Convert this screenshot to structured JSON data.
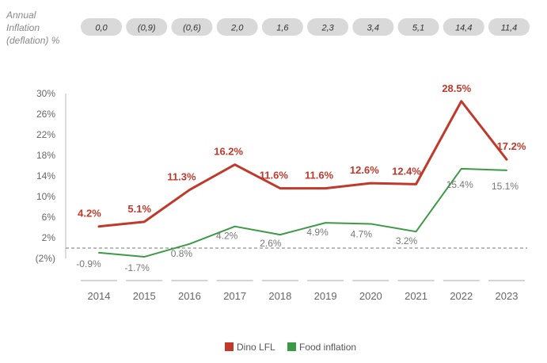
{
  "inflation_header": {
    "title_lines": [
      "Annual",
      "Inflation",
      "(deflation) %"
    ],
    "values": [
      "0,0",
      "(0,9)",
      "(0,6)",
      "2,0",
      "1,6",
      "2,3",
      "3,4",
      "5,1",
      "14,4",
      "11,4"
    ]
  },
  "colors": {
    "dino": "#c0392b",
    "food": "#3c9a46",
    "axis_text": "#666666",
    "pill_bg": "#d9d9d9",
    "dashed": "#777777"
  },
  "chart_data": {
    "type": "line",
    "categories": [
      "2014",
      "2015",
      "2016",
      "2017",
      "2018",
      "2019",
      "2020",
      "2021",
      "2022",
      "2023"
    ],
    "ylim": [
      -2,
      30
    ],
    "y_ticks": [
      30,
      26,
      22,
      18,
      14,
      10,
      6,
      2,
      -2
    ],
    "y_tick_labels": [
      "30%",
      "26%",
      "22%",
      "18%",
      "14%",
      "10%",
      "6%",
      "2%",
      "(2%)"
    ],
    "zero_line": true,
    "series": [
      {
        "name": "Dino LFL",
        "values": [
          4.2,
          5.1,
          11.3,
          16.2,
          11.6,
          11.6,
          12.6,
          12.4,
          28.5,
          17.2
        ],
        "labels": [
          "4.2%",
          "5.1%",
          "11.3%",
          "16.2%",
          "11.6%",
          "11.6%",
          "12.6%",
          "12.4%",
          "28.5%",
          "17.2%"
        ]
      },
      {
        "name": "Food inflation",
        "values": [
          -0.9,
          -1.7,
          0.8,
          4.2,
          2.6,
          4.9,
          4.7,
          3.2,
          15.4,
          15.1
        ],
        "labels": [
          "-0.9%",
          "-1.7%",
          "0.8%",
          "4.2%",
          "2.6%",
          "4.9%",
          "4.7%",
          "3.2%",
          "15.4%",
          "15.1%"
        ]
      }
    ],
    "legend_position": "bottom-center"
  }
}
